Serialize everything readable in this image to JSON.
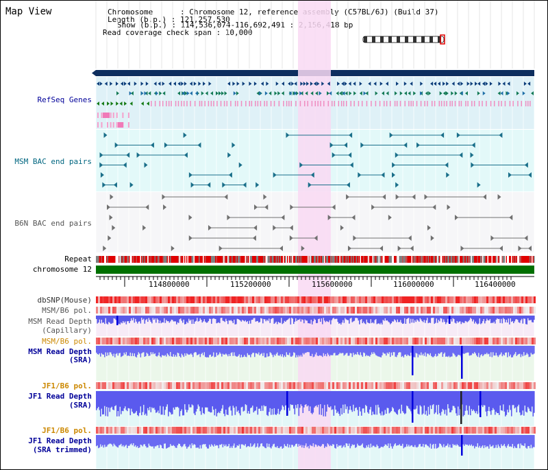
{
  "map_view": {
    "title": "Map View"
  },
  "header": {
    "lines": [
      "Chromosome      : Chromosome 12, reference assembly (C57BL/6J) (Build 37)",
      "Length (b.p.) : 121,257,530",
      "Show (b.p.) : 114,536,074-116,692,491 : 2,156,418 bp",
      "Read coverage check span : 10,000"
    ]
  },
  "ruler": {
    "ticks": [
      "114800000",
      "115200000",
      "115600000",
      "116000000",
      "116400000"
    ]
  },
  "tracks": {
    "refseq": {
      "label": "RefSeq Genes"
    },
    "msm_bac": {
      "label": "MSM BAC end pairs"
    },
    "b6n_bac": {
      "label": "B6N BAC end pairs"
    },
    "repeat": {
      "label": "Repeat"
    },
    "chromosome": {
      "label": "chromosome 12"
    },
    "dbsnp": {
      "label": "dbSNP(Mouse)"
    },
    "msm_b6_pol_1": {
      "label": "MSM/B6 pol."
    },
    "msm_capillary": {
      "label_1": "MSM Read Depth",
      "label_2": "(Capillary)"
    },
    "msm_b6_pol_2": {
      "label": "MSM/B6 pol."
    },
    "msm_sra": {
      "label_1": "MSM Read Depth",
      "label_2": "(SRA)"
    },
    "jf1_b6_pol_1": {
      "label": "JF1/B6 pol."
    },
    "jf1_sra": {
      "label_1": "JF1 Read Depth",
      "label_2": "(SRA)"
    },
    "jf1_b6_pol_2": {
      "label": "JF1/B6 pol."
    },
    "jf1_trimmed": {
      "label_1": "JF1 Read Depth",
      "label_2": "(SRA trimmed)"
    }
  },
  "colors": {
    "refseq_label": "#000099",
    "msm_bac_label": "#006680",
    "b6n_bac_label": "#555555",
    "orange_label": "#cc8800",
    "blue_label": "#000099",
    "gray_label": "#333333",
    "highlight": "#f9d9f3"
  }
}
